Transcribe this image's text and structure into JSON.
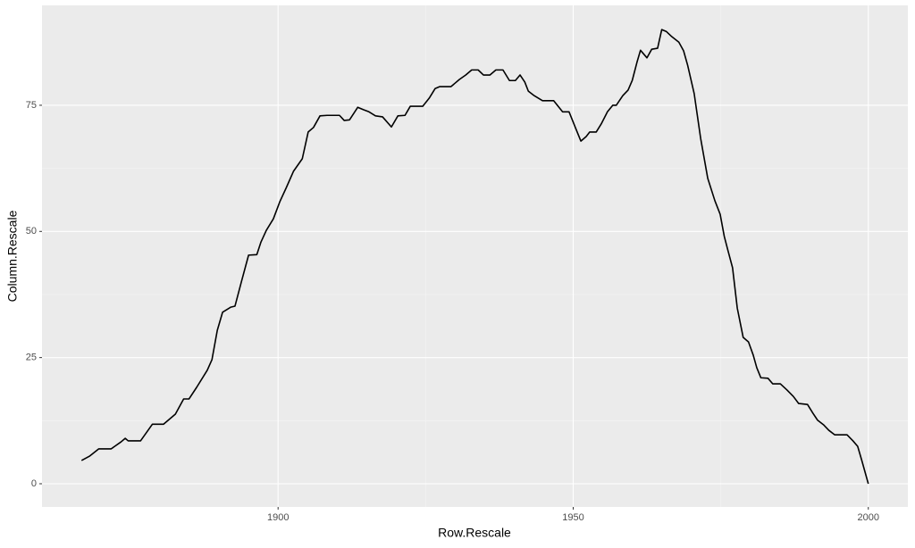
{
  "chart_data": {
    "type": "line",
    "x_label": "Row.Rescale",
    "y_label": "Column.Rescale",
    "xlim": [
      1860,
      2006.7
    ],
    "ylim": [
      -4.6,
      94.8
    ],
    "xticks": [
      1900,
      1950,
      2000
    ],
    "yticks": [
      0,
      25,
      50,
      75
    ],
    "grid": true,
    "x": [
      1866.7,
      1868.1,
      1869.6,
      1871.7,
      1873.4,
      1874.1,
      1874.6,
      1876.7,
      1878.7,
      1880.6,
      1882.6,
      1884,
      1884.9,
      1886.2,
      1888,
      1888.8,
      1889.7,
      1890.6,
      1892,
      1892.7,
      1893.8,
      1895,
      1896.4,
      1897.1,
      1898,
      1899.2,
      1900.3,
      1901.4,
      1902.6,
      1904.1,
      1905.1,
      1906,
      1907.1,
      1908.3,
      1910.4,
      1911.2,
      1912.1,
      1913.5,
      1914.5,
      1915.4,
      1916.5,
      1917.7,
      1919.2,
      1920.3,
      1921.5,
      1922.4,
      1924.5,
      1925.6,
      1926.6,
      1927.4,
      1929.3,
      1930.7,
      1931.8,
      1932.8,
      1933.9,
      1934.8,
      1935.9,
      1936.9,
      1938.1,
      1939.2,
      1940.2,
      1941,
      1941.8,
      1942.4,
      1943.4,
      1944.8,
      1946.7,
      1948.2,
      1949.3,
      1950.5,
      1951.3,
      1952.2,
      1952.8,
      1953.9,
      1954.8,
      1955.8,
      1956.7,
      1957.3,
      1958.4,
      1959.3,
      1960,
      1960.8,
      1961.4,
      1962.5,
      1963.3,
      1964.3,
      1965,
      1965.8,
      1966.7,
      1967.9,
      1968.7,
      1969.4,
      1970.5,
      1971.6,
      1972.8,
      1974,
      1974.9,
      1975.6,
      1976.2,
      1977,
      1977.8,
      1978.8,
      1979.7,
      1980.5,
      1981.1,
      1981.8,
      1983,
      1983.8,
      1985.1,
      1986.2,
      1987.3,
      1988.2,
      1989.7,
      1990.6,
      1991.4,
      1992.4,
      1993.3,
      1994.3,
      1996.4,
      1997.4,
      1998.2,
      1998.9,
      2000
    ],
    "series": [
      {
        "color": "#000000",
        "values": [
          4.6,
          5.5,
          6.9,
          6.9,
          8.3,
          9.0,
          8.5,
          8.5,
          11.8,
          11.8,
          13.8,
          16.8,
          16.8,
          19.1,
          22.5,
          24.6,
          30.4,
          34.0,
          35.0,
          35.2,
          40.1,
          45.3,
          45.4,
          47.9,
          50.2,
          52.5,
          55.9,
          58.7,
          61.9,
          64.4,
          69.7,
          70.6,
          72.9,
          73.0,
          73.0,
          72.0,
          72.1,
          74.6,
          74.1,
          73.7,
          72.9,
          72.7,
          70.7,
          72.9,
          73.0,
          74.8,
          74.8,
          76.4,
          78.3,
          78.7,
          78.7,
          80.1,
          81.0,
          82.0,
          82.0,
          81.0,
          81.0,
          82.0,
          82.0,
          79.9,
          79.9,
          81.0,
          79.6,
          77.8,
          76.9,
          75.9,
          75.9,
          73.7,
          73.7,
          70.2,
          67.9,
          68.8,
          69.7,
          69.7,
          71.4,
          73.7,
          75.0,
          75.0,
          76.9,
          78.0,
          79.9,
          83.5,
          85.9,
          84.4,
          86.1,
          86.3,
          90.0,
          89.6,
          88.6,
          87.5,
          85.8,
          82.9,
          77.3,
          68.4,
          60.5,
          56.1,
          53.4,
          49.0,
          46.3,
          42.8,
          34.8,
          29.0,
          28.1,
          25.5,
          23.0,
          21.0,
          20.9,
          19.8,
          19.8,
          18.6,
          17.3,
          15.9,
          15.7,
          14.0,
          12.6,
          11.7,
          10.6,
          9.7,
          9.7,
          8.5,
          7.4,
          4.6,
          0
        ]
      }
    ]
  }
}
